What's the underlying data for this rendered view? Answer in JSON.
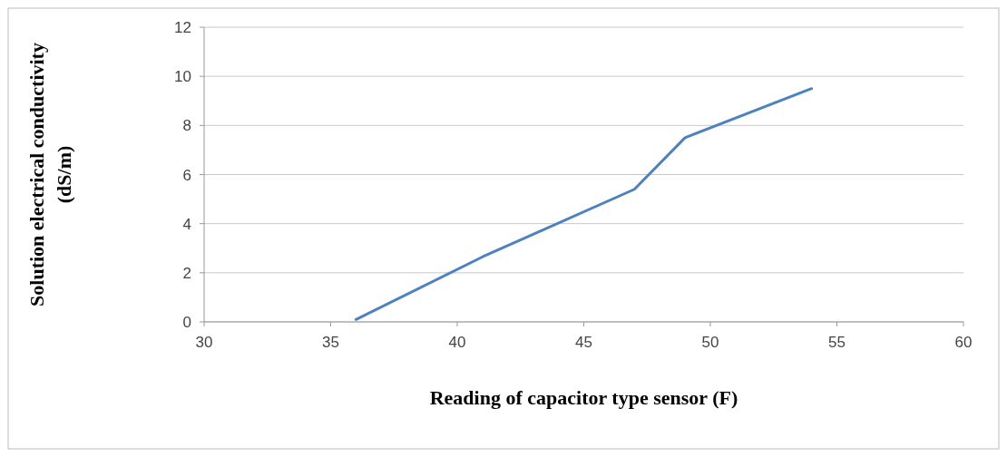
{
  "chart_data": {
    "type": "line",
    "xlabel": "Reading of capacitor type sensor (F)",
    "ylabel": "Solution electrical conductivity (dS/m)",
    "x": [
      36,
      41,
      47,
      49,
      54
    ],
    "series": [
      {
        "color": "#4f81bd",
        "values": [
          0.1,
          2.65,
          5.4,
          7.5,
          9.5
        ]
      }
    ],
    "xlim": [
      30,
      60
    ],
    "xticks": [
      30,
      35,
      40,
      45,
      50,
      55,
      60
    ],
    "ylim": [
      0,
      12
    ],
    "yticks": [
      0,
      2,
      4,
      6,
      8,
      10,
      12
    ],
    "grid": "y",
    "marker": "none",
    "line_style": "solid"
  }
}
